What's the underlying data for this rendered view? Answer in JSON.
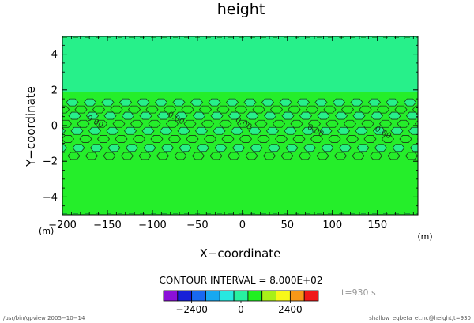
{
  "chart_data": {
    "type": "heatmap",
    "title": "height",
    "xlabel": "X−coordinate",
    "ylabel": "Y−coordinate",
    "x_unit": "(m)",
    "y_unit": "(m)",
    "xlim": [
      -200,
      195
    ],
    "ylim": [
      -5,
      5
    ],
    "x_ticks": [
      -200,
      -150,
      -100,
      -50,
      0,
      50,
      100,
      150
    ],
    "x_tick_labels": [
      "−200",
      "−150",
      "−100",
      "−50",
      "0",
      "50",
      "100",
      "150"
    ],
    "y_ticks": [
      -4,
      -2,
      0,
      2,
      4
    ],
    "y_tick_labels": [
      "−4",
      "−2",
      "0",
      "2",
      "4"
    ],
    "contour_label": "0.00",
    "contour_label_positions": [
      [
        -165,
        0.1
      ],
      [
        -75,
        0.3
      ],
      [
        0,
        0.0
      ],
      [
        80,
        -0.4
      ],
      [
        155,
        -0.5
      ]
    ],
    "bands": [
      {
        "y0": 1.9,
        "y1": 5.0,
        "level_color": "#27f08a"
      },
      {
        "y0": -5.0,
        "y1": -1.9,
        "level_color": "#25ee2a"
      }
    ],
    "contour_interval": "CONTOUR INTERVAL = 8.000E+02",
    "time": "t=930 s",
    "colorbar": {
      "colors": [
        "#8b10d8",
        "#1820d8",
        "#1868f0",
        "#18a8f0",
        "#28e8e0",
        "#28f0a0",
        "#20f020",
        "#a8f018",
        "#f8f818",
        "#f89818",
        "#f01818"
      ],
      "tick_labels": [
        "−2400",
        "0",
        "2400"
      ],
      "tick_positions": [
        2,
        5.5,
        9
      ]
    }
  },
  "footer": {
    "left": "/usr/bin/gpview   2005−10−14",
    "right": "shallow_eqbeta_et.nc@height,t=930"
  }
}
